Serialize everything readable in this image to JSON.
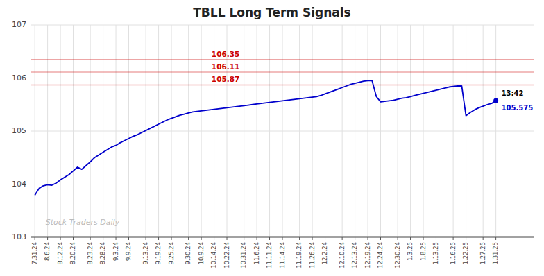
{
  "chart_data": {
    "type": "line",
    "title": "TBLL Long Term Signals",
    "color": "#0000cc",
    "categories": [
      "7.31.24",
      null,
      null,
      "8.6.24",
      null,
      null,
      "8.12.24",
      null,
      null,
      "8.20.24",
      null,
      null,
      null,
      "8.23.24",
      null,
      null,
      "8.28.24",
      null,
      null,
      "9.3.24",
      null,
      null,
      "9.9.24",
      null,
      null,
      null,
      "9.13.24",
      null,
      null,
      "9.19.24",
      null,
      null,
      "9.25.24",
      null,
      null,
      null,
      "9.30.24",
      null,
      null,
      "10.9.24",
      null,
      null,
      "10.14.24",
      null,
      null,
      "10.22.24",
      null,
      null,
      null,
      "10.31.24",
      null,
      null,
      "11.6.24",
      null,
      null,
      "11.11.24",
      null,
      null,
      "11.14.24",
      null,
      null,
      null,
      "11.19.24",
      null,
      null,
      "11.26.24",
      null,
      null,
      "12.2.24",
      null,
      null,
      null,
      "12.10.24",
      null,
      null,
      "12.13.24",
      null,
      null,
      "12.19.24",
      null,
      null,
      "12.24.24",
      null,
      null,
      null,
      "12.30.24",
      null,
      null,
      "1.3.25",
      null,
      null,
      "1.8.25",
      null,
      null,
      "1.13.25",
      null,
      null,
      null,
      "1.16.25",
      null,
      null,
      "1.22.25",
      null,
      null,
      null,
      "1.27.25",
      null,
      null,
      "1.31.25"
    ],
    "values": [
      103.79,
      103.92,
      103.97,
      103.99,
      103.98,
      104.02,
      104.08,
      104.13,
      104.18,
      104.25,
      104.32,
      104.28,
      104.35,
      104.42,
      104.5,
      104.55,
      104.6,
      104.65,
      104.7,
      104.73,
      104.78,
      104.82,
      104.86,
      104.9,
      104.93,
      104.97,
      105.01,
      105.05,
      105.09,
      105.13,
      105.17,
      105.21,
      105.24,
      105.27,
      105.3,
      105.32,
      105.34,
      105.36,
      105.37,
      105.38,
      105.39,
      105.4,
      105.41,
      105.42,
      105.43,
      105.44,
      105.45,
      105.46,
      105.47,
      105.48,
      105.49,
      105.5,
      105.51,
      105.52,
      105.53,
      105.54,
      105.55,
      105.56,
      105.57,
      105.58,
      105.59,
      105.6,
      105.61,
      105.62,
      105.63,
      105.64,
      105.65,
      105.67,
      105.7,
      105.73,
      105.76,
      105.79,
      105.82,
      105.85,
      105.88,
      105.9,
      105.92,
      105.94,
      105.95,
      105.95,
      105.65,
      105.55,
      105.56,
      105.57,
      105.58,
      105.6,
      105.62,
      105.63,
      105.65,
      105.67,
      105.69,
      105.71,
      105.73,
      105.75,
      105.77,
      105.79,
      105.81,
      105.83,
      105.84,
      105.85,
      105.85,
      105.29,
      105.35,
      105.4,
      105.44,
      105.47,
      105.5,
      105.52,
      105.575
    ],
    "ylim": [
      103,
      107
    ],
    "yticks": [
      103,
      104,
      105,
      106,
      107
    ],
    "grid": true,
    "reference_lines": [
      {
        "value": 105.87,
        "color": "#cc0000"
      },
      {
        "value": 106.11,
        "color": "#cc0000"
      },
      {
        "value": 106.35,
        "color": "#cc0000"
      }
    ],
    "last_point": {
      "value": 105.575,
      "time": "13:42"
    },
    "watermark": "Stock Traders Daily"
  }
}
